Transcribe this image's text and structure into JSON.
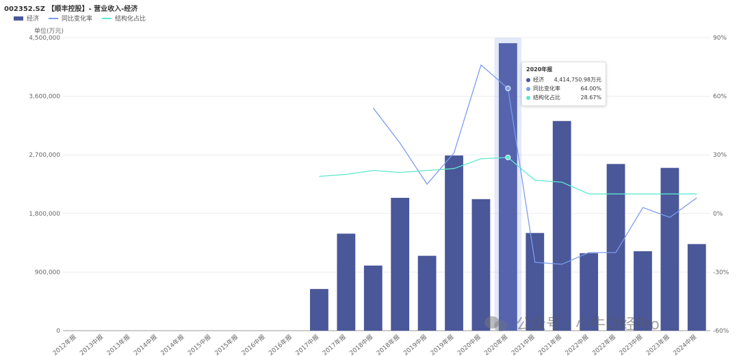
{
  "title": "002352.SZ 【顺丰控股】- 营业收入-经济",
  "unit_label": "单位(万元)",
  "legend": [
    {
      "name": "经济",
      "color": "#4a5799",
      "kind": "bar"
    },
    {
      "name": "同比变化率",
      "color": "#7c9cf0",
      "kind": "line"
    },
    {
      "name": "结构化占比",
      "color": "#5ee6cf",
      "kind": "line"
    }
  ],
  "tooltip": {
    "title": "2020年报",
    "rows": [
      {
        "name": "经济",
        "value": "4,414,750.98万元",
        "color": "#4a5799"
      },
      {
        "name": "同比变化率",
        "value": "64.00%",
        "color": "#7c9cf0"
      },
      {
        "name": "结构化占比",
        "value": "28.67%",
        "color": "#5ee6cf"
      }
    ]
  },
  "watermark": "公众号 · 小牛财经Pro",
  "chart_data": {
    "type": "bar",
    "categories": [
      "2012年报",
      "2013中报",
      "2013年报",
      "2014中报",
      "2014年报",
      "2015中报",
      "2015年报",
      "2016中报",
      "2016年报",
      "2017中报",
      "2017年报",
      "2018中报",
      "2018年报",
      "2019中报",
      "2019年报",
      "2020中报",
      "2020年报",
      "2021中报",
      "2021年报",
      "2022中报",
      "2022年报",
      "2023中报",
      "2023年报",
      "2024中报"
    ],
    "series": [
      {
        "name": "经济",
        "type": "bar",
        "axis": "left",
        "color": "#4a5799",
        "values": [
          null,
          null,
          null,
          null,
          null,
          null,
          null,
          null,
          null,
          640000,
          1490000,
          1000000,
          2040000,
          1150000,
          2690000,
          2020000,
          4414750.98,
          1500000,
          3220000,
          1190000,
          2560000,
          1220000,
          2500000,
          1330000
        ]
      },
      {
        "name": "同比变化率",
        "type": "line",
        "axis": "right",
        "color": "#7c9cf0",
        "values": [
          null,
          null,
          null,
          null,
          null,
          null,
          null,
          null,
          null,
          null,
          null,
          54,
          36,
          15,
          31,
          76,
          64,
          -25,
          -26,
          -20,
          -20,
          3,
          -2,
          8
        ]
      },
      {
        "name": "结构化占比",
        "type": "line",
        "axis": "right",
        "color": "#5ee6cf",
        "values": [
          null,
          null,
          null,
          null,
          null,
          null,
          null,
          null,
          null,
          19,
          20,
          22,
          21,
          22,
          23,
          28,
          28.67,
          17,
          16,
          10,
          10,
          10,
          10,
          10
        ]
      }
    ],
    "left_axis": {
      "min": 0,
      "max": 4500000,
      "ticks": [
        "0",
        "900,000",
        "1,800,000",
        "2,700,000",
        "3,600,000",
        "4,500,000"
      ]
    },
    "right_axis": {
      "min": -60,
      "max": 90,
      "ticks": [
        "-60%",
        "-30%",
        "0%",
        "30%",
        "60%",
        "90%"
      ]
    },
    "highlight_category": "2020年报",
    "grid": true
  }
}
